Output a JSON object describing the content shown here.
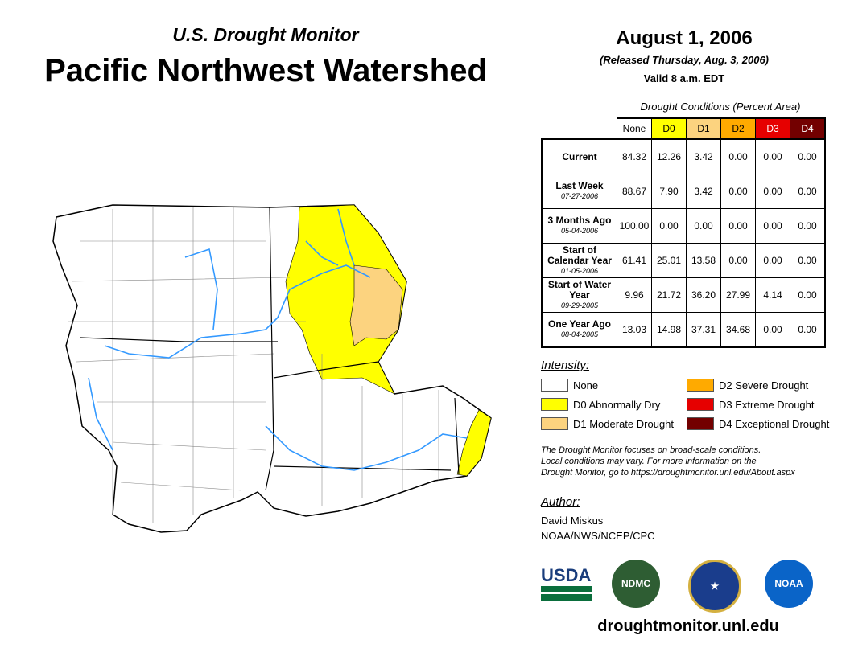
{
  "header": {
    "subtitle": "U.S. Drought Monitor",
    "title": "Pacific Northwest Watershed",
    "date": "August 1, 2006",
    "released": "(Released Thursday, Aug. 3, 2006)",
    "valid": "Valid 8 a.m. EDT"
  },
  "table": {
    "caption": "Drought Conditions (Percent Area)",
    "columns": [
      {
        "label": "None",
        "color": "#ffffff",
        "text": "#000"
      },
      {
        "label": "D0",
        "color": "#ffff00",
        "text": "#000"
      },
      {
        "label": "D1",
        "color": "#fcd37f",
        "text": "#000"
      },
      {
        "label": "D2",
        "color": "#ffaa00",
        "text": "#000"
      },
      {
        "label": "D3",
        "color": "#e60000",
        "text": "#fff"
      },
      {
        "label": "D4",
        "color": "#730000",
        "text": "#fff"
      }
    ],
    "rows": [
      {
        "label": "Current",
        "date": "",
        "values": [
          "84.32",
          "12.26",
          "3.42",
          "0.00",
          "0.00",
          "0.00"
        ]
      },
      {
        "label": "Last Week",
        "date": "07-27-2006",
        "values": [
          "88.67",
          "7.90",
          "3.42",
          "0.00",
          "0.00",
          "0.00"
        ]
      },
      {
        "label": "3 Months Ago",
        "date": "05-04-2006",
        "values": [
          "100.00",
          "0.00",
          "0.00",
          "0.00",
          "0.00",
          "0.00"
        ]
      },
      {
        "label": "Start of Calendar Year",
        "date": "01-05-2006",
        "values": [
          "61.41",
          "25.01",
          "13.58",
          "0.00",
          "0.00",
          "0.00"
        ]
      },
      {
        "label": "Start of Water Year",
        "date": "09-29-2005",
        "values": [
          "9.96",
          "21.72",
          "36.20",
          "27.99",
          "4.14",
          "0.00"
        ]
      },
      {
        "label": "One Year Ago",
        "date": "08-04-2005",
        "values": [
          "13.03",
          "14.98",
          "37.31",
          "34.68",
          "0.00",
          "0.00"
        ]
      }
    ]
  },
  "legend": {
    "title": "Intensity:",
    "items": [
      {
        "label": "None",
        "color": "#ffffff"
      },
      {
        "label": "D0 Abnormally Dry",
        "color": "#ffff00"
      },
      {
        "label": "D1 Moderate Drought",
        "color": "#fcd37f"
      },
      {
        "label": "D2 Severe Drought",
        "color": "#ffaa00"
      },
      {
        "label": "D3 Extreme Drought",
        "color": "#e60000"
      },
      {
        "label": "D4 Exceptional Drought",
        "color": "#730000"
      }
    ]
  },
  "note": [
    "The Drought Monitor focuses on broad-scale conditions.",
    "Local conditions may vary. For more information on the",
    "Drought Monitor, go to https://droughtmonitor.unl.edu/About.aspx"
  ],
  "author": {
    "title": "Author:",
    "name": "David Miskus",
    "org": "NOAA/NWS/NCEP/CPC"
  },
  "logos": {
    "usda": "USDA",
    "ndmc": "NDMC",
    "noaa": "NOAA"
  },
  "footer_url": "droughtmonitor.unl.edu"
}
